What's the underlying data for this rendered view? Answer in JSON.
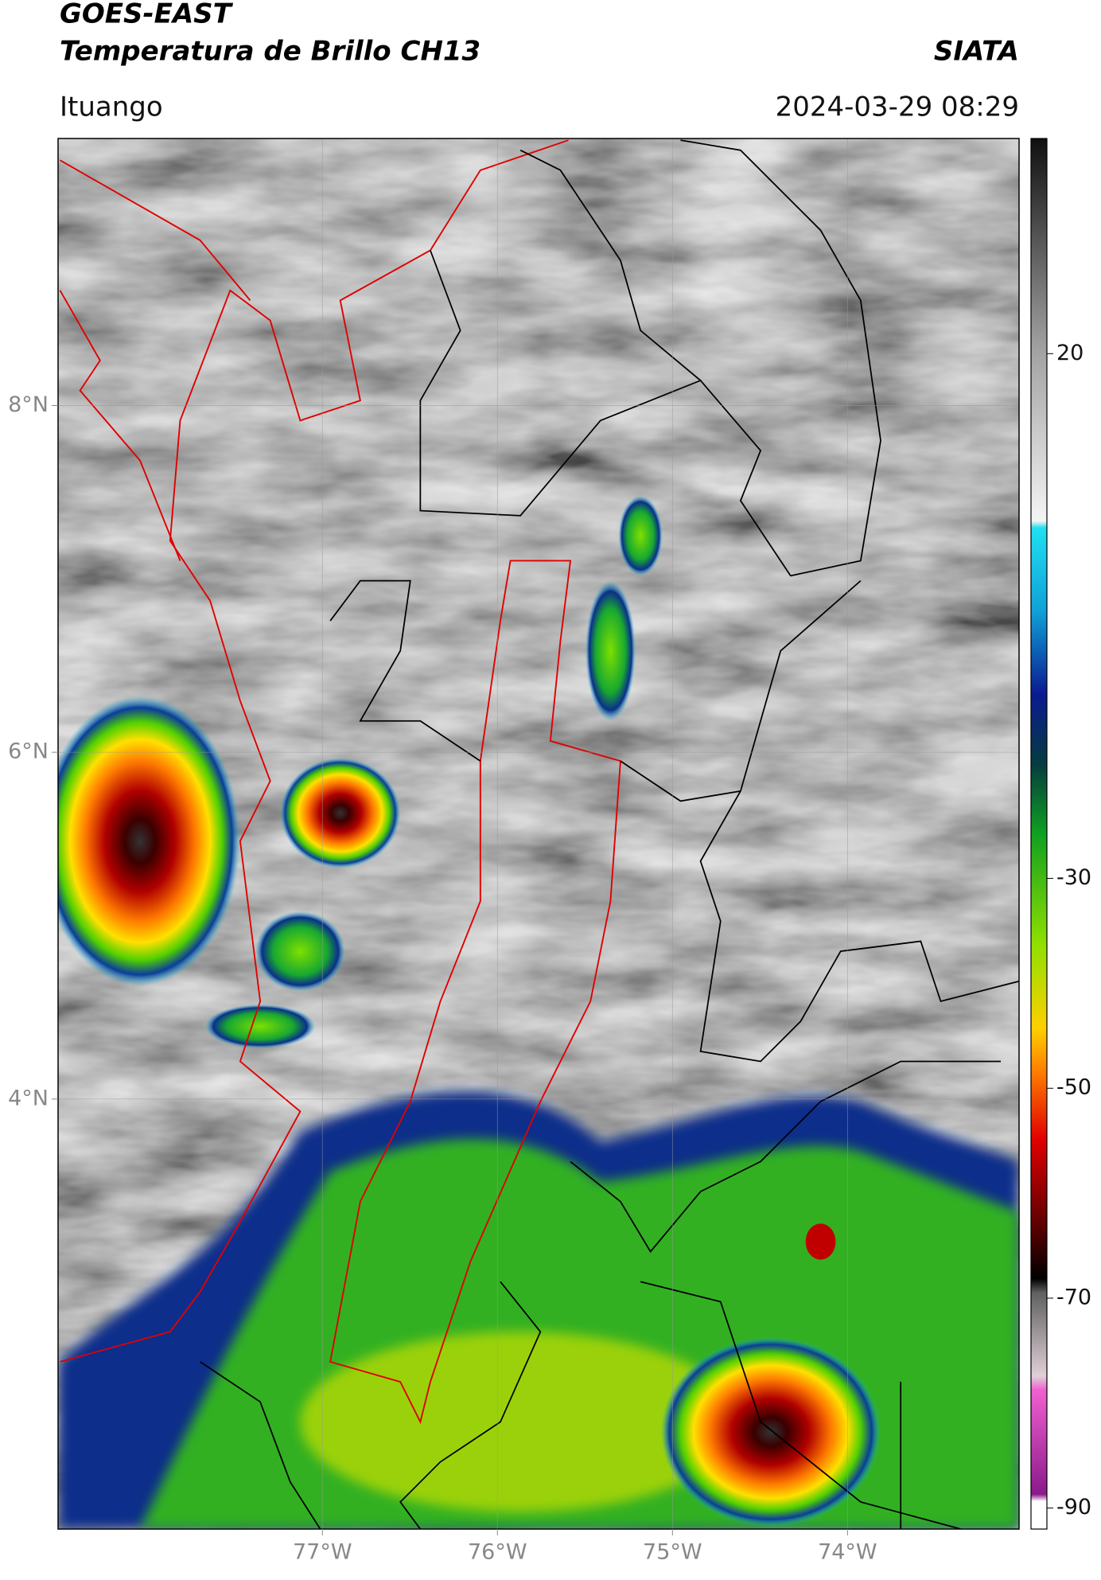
{
  "header": {
    "title_line1": "GOES-EAST",
    "title_line2": "Temperatura de Brillo CH13",
    "source": "SIATA",
    "region": "Ituango",
    "datetime": "2024-03-29 08:29"
  },
  "map": {
    "lonlim": [
      -78.51,
      -73.02
    ],
    "latlim": [
      1.52,
      9.54
    ],
    "lonticks": [
      {
        "value": -77,
        "label": "77°W"
      },
      {
        "value": -76,
        "label": "76°W"
      },
      {
        "value": -75,
        "label": "75°W"
      },
      {
        "value": -74,
        "label": "74°W"
      }
    ],
    "latticks": [
      {
        "value": 8,
        "label": "8°N"
      },
      {
        "value": 6,
        "label": "6°N"
      },
      {
        "value": 4,
        "label": "4°N"
      }
    ],
    "grid": true
  },
  "colorbar": {
    "lim": [
      -92,
      40.5
    ],
    "ticks": [
      20,
      -30,
      -50,
      -70,
      -90
    ]
  }
}
